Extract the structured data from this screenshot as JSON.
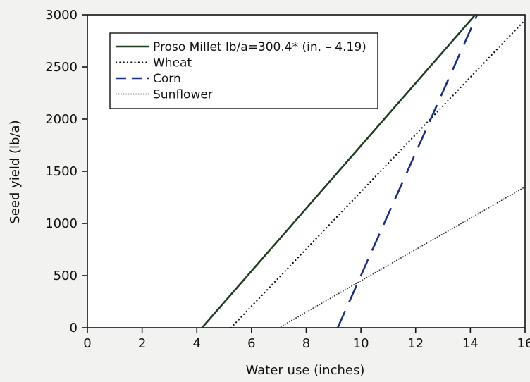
{
  "chart_data": {
    "type": "line",
    "xlabel": "Water use (inches)",
    "ylabel": "Seed yield (lb/a)",
    "xlim": [
      0,
      16
    ],
    "ylim": [
      0,
      3000
    ],
    "xticks": [
      0,
      2,
      4,
      6,
      8,
      10,
      12,
      14,
      16
    ],
    "yticks": [
      0,
      500,
      1000,
      1500,
      2000,
      2500,
      3000
    ],
    "grid": false,
    "legend_position": "top-left",
    "series": [
      {
        "name": "Proso Millet lb/a=300.4* (in. – 4.19)",
        "style": "solid",
        "color": "#1f3d1f",
        "x": [
          4.19,
          14.18
        ],
        "y": [
          0,
          3000
        ]
      },
      {
        "name": "Wheat",
        "style": "dotted",
        "color": "#111111",
        "x": [
          5.25,
          16
        ],
        "y": [
          0,
          2950
        ]
      },
      {
        "name": "Corn",
        "style": "dashed",
        "color": "#1c2f7a",
        "x": [
          9.15,
          14.25
        ],
        "y": [
          0,
          3000
        ]
      },
      {
        "name": "Sunflower",
        "style": "dotted-fine",
        "color": "#333333",
        "x": [
          7.0,
          16
        ],
        "y": [
          0,
          1350
        ]
      }
    ]
  }
}
